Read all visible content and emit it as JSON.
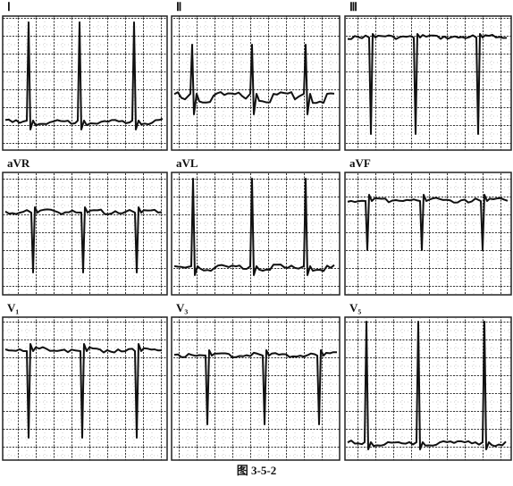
{
  "panels": [
    {
      "label": "Ⅰ"
    },
    {
      "label": "Ⅱ"
    },
    {
      "label": "Ⅲ"
    },
    {
      "label": "aVR"
    },
    {
      "label": "aVL"
    },
    {
      "label": "aVF"
    },
    {
      "label": "V₁"
    },
    {
      "label": "V₃"
    },
    {
      "label": "V₅"
    }
  ],
  "caption": "图 3-5-2"
}
